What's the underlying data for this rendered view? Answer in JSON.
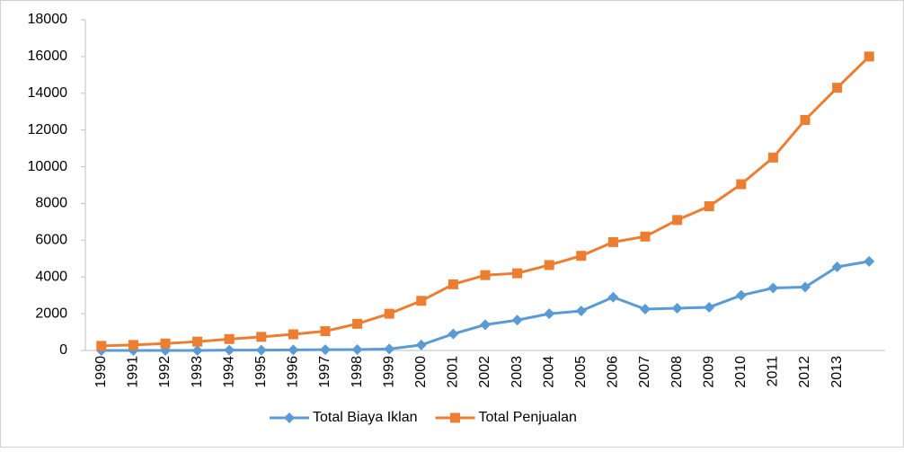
{
  "chart_data": {
    "type": "line",
    "categories": [
      "1990",
      "1991",
      "1992",
      "1993",
      "1994",
      "1995",
      "1996",
      "1997",
      "1998",
      "1999",
      "2000",
      "2001",
      "2002",
      "2003",
      "2004",
      "2005",
      "2006",
      "2007",
      "2008",
      "2009",
      "2010",
      "2011",
      "2012",
      "2013",
      null
    ],
    "series": [
      {
        "name": "Total Biaya Iklan",
        "color": "#5b9bd5",
        "marker": "diamond",
        "values": [
          0,
          0,
          0,
          0,
          20,
          20,
          30,
          40,
          50,
          80,
          300,
          900,
          1400,
          1650,
          2000,
          2150,
          2900,
          2250,
          2300,
          2350,
          3000,
          3400,
          3450,
          4550,
          4850
        ]
      },
      {
        "name": "Total Penjualan",
        "color": "#ed7d31",
        "marker": "square",
        "values": [
          250,
          300,
          380,
          480,
          620,
          740,
          880,
          1050,
          1450,
          2000,
          2700,
          3600,
          4100,
          4200,
          4650,
          5150,
          5900,
          6200,
          7100,
          7850,
          9050,
          10500,
          12550,
          14300,
          16000
        ]
      }
    ],
    "ylim": [
      0,
      18000
    ],
    "yticks": [
      0,
      2000,
      4000,
      6000,
      8000,
      10000,
      12000,
      14000,
      16000,
      18000
    ],
    "grid": false,
    "legend": "bottom"
  }
}
